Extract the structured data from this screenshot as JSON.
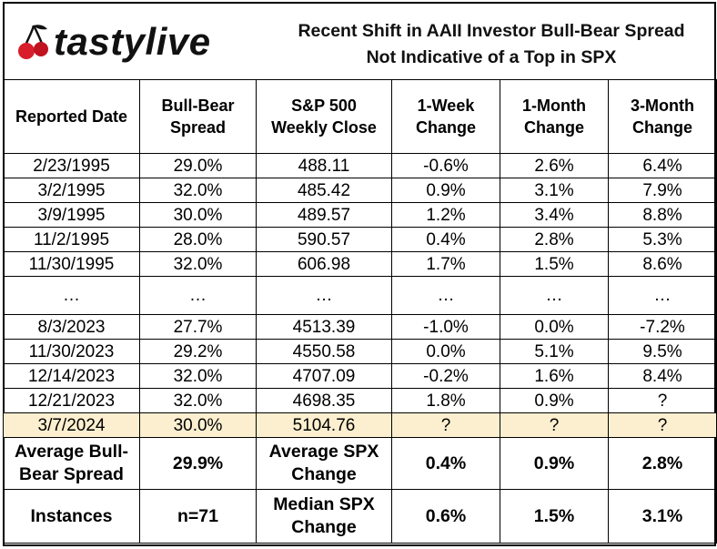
{
  "logo": "tastylive",
  "title": [
    "Recent Shift in AAII Investor Bull-Bear Spread",
    "Not Indicative of a Top in SPX"
  ],
  "table": {
    "header": [
      [
        "Reported Date"
      ],
      [
        "Bull-Bear",
        "Spread"
      ],
      [
        "S&P 500",
        "Weekly Close"
      ],
      [
        "1-Week",
        "Change"
      ],
      [
        "1-Month",
        "Change"
      ],
      [
        "3-Month",
        "Change"
      ]
    ],
    "rows": [
      [
        "2/23/1995",
        "29.0%",
        "488.11",
        "-0.6%",
        "2.6%",
        "6.4%"
      ],
      [
        "3/2/1995",
        "32.0%",
        "485.42",
        "0.9%",
        "3.1%",
        "7.9%"
      ],
      [
        "3/9/1995",
        "30.0%",
        "489.57",
        "1.2%",
        "3.4%",
        "8.8%"
      ],
      [
        "11/2/1995",
        "28.0%",
        "590.57",
        "0.4%",
        "2.8%",
        "5.3%"
      ],
      [
        "11/30/1995",
        "32.0%",
        "606.98",
        "1.7%",
        "1.5%",
        "8.6%"
      ],
      [
        "…",
        "…",
        "…",
        "…",
        "…",
        "…"
      ],
      [
        "8/3/2023",
        "27.7%",
        "4513.39",
        "-1.0%",
        "0.0%",
        "-7.2%"
      ],
      [
        "11/30/2023",
        "29.2%",
        "4550.58",
        "0.0%",
        "5.1%",
        "9.5%"
      ],
      [
        "12/14/2023",
        "32.0%",
        "4707.09",
        "-0.2%",
        "1.6%",
        "8.4%"
      ],
      [
        "12/21/2023",
        "32.0%",
        "4698.35",
        "1.8%",
        "0.9%",
        "?"
      ],
      [
        "3/7/2024",
        "30.0%",
        "5104.76",
        "?",
        "?",
        "?"
      ]
    ],
    "summary": [
      [
        [
          "Average Bull-",
          "Bear Spread"
        ],
        [
          "29.9%"
        ],
        [
          "Average SPX",
          "Change"
        ],
        [
          "0.4%"
        ],
        [
          "0.9%"
        ],
        [
          "2.8%"
        ]
      ],
      [
        [
          "Instances"
        ],
        [
          "n=71"
        ],
        [
          "Median SPX",
          "Change"
        ],
        [
          "0.6%"
        ],
        [
          "1.5%"
        ],
        [
          "3.1%"
        ]
      ]
    ]
  }
}
